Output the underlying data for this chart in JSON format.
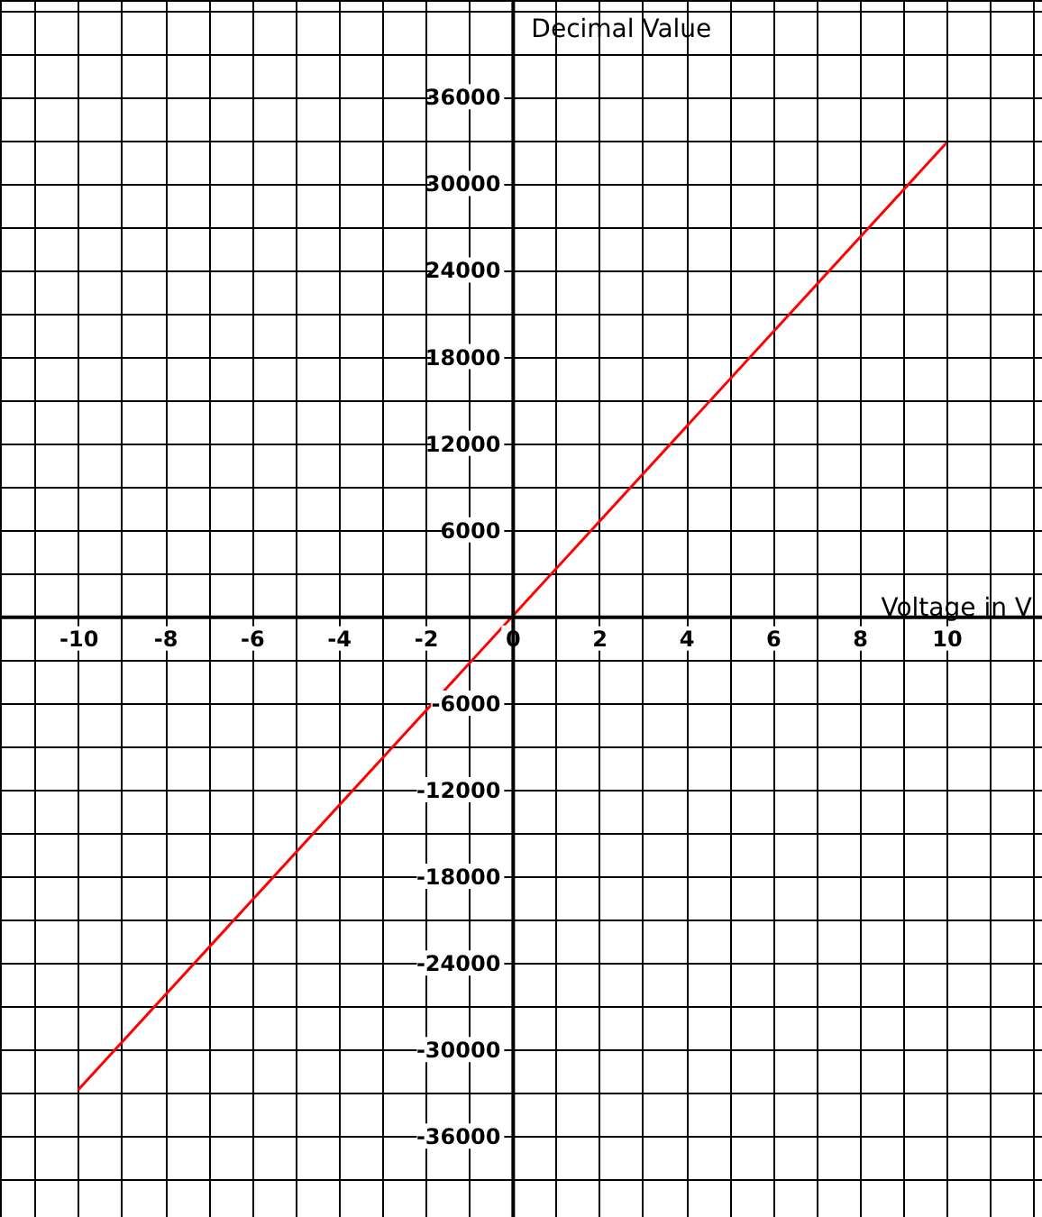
{
  "chart_data": {
    "type": "line",
    "xlabel": "Voltage in V",
    "ylabel": "Decimal Value",
    "x": [
      -10,
      10
    ],
    "series": [
      {
        "color": "#ff0000",
        "values": [
          -32800,
          32800
        ]
      }
    ],
    "xlim": [
      -11.8,
      12.2
    ],
    "ylim": [
      -41600,
      42700
    ],
    "xticks": [
      -10,
      {
        "value": -9,
        "label": null
      },
      -8,
      {
        "value": -7,
        "label": null
      },
      -6,
      {
        "value": -5,
        "label": null
      },
      -4,
      {
        "value": -3,
        "label": null
      },
      -2,
      {
        "value": -1,
        "label": null
      },
      0,
      {
        "value": 1,
        "label": null
      },
      2,
      {
        "value": 3,
        "label": null
      },
      4,
      {
        "value": 5,
        "label": null
      },
      6,
      {
        "value": 7,
        "label": null
      },
      8,
      {
        "value": 9,
        "label": null
      },
      10,
      {
        "value": 11,
        "label": null
      },
      {
        "value": -11,
        "label": null
      },
      {
        "value": 12,
        "label": null
      }
    ],
    "yticks": [
      -36000,
      {
        "value": -39000,
        "label": null
      },
      {
        "value": -33000,
        "label": null
      },
      -30000,
      {
        "value": -27000,
        "label": null
      },
      -24000,
      {
        "value": -21000,
        "label": null
      },
      -18000,
      {
        "value": -15000,
        "label": null
      },
      -12000,
      {
        "value": -9000,
        "label": null
      },
      -6000,
      {
        "value": -3000,
        "label": null
      },
      {
        "value": 0,
        "label": null
      },
      {
        "value": 3000,
        "label": null
      },
      6000,
      {
        "value": 9000,
        "label": null
      },
      12000,
      {
        "value": 15000,
        "label": null
      },
      18000,
      {
        "value": 21000,
        "label": null
      },
      24000,
      {
        "value": 27000,
        "label": null
      },
      30000,
      {
        "value": 33000,
        "label": null
      },
      36000,
      {
        "value": 39000,
        "label": null
      },
      {
        "value": 42000,
        "label": null
      }
    ],
    "grid": true,
    "marker": "none",
    "line_style": "solid"
  }
}
